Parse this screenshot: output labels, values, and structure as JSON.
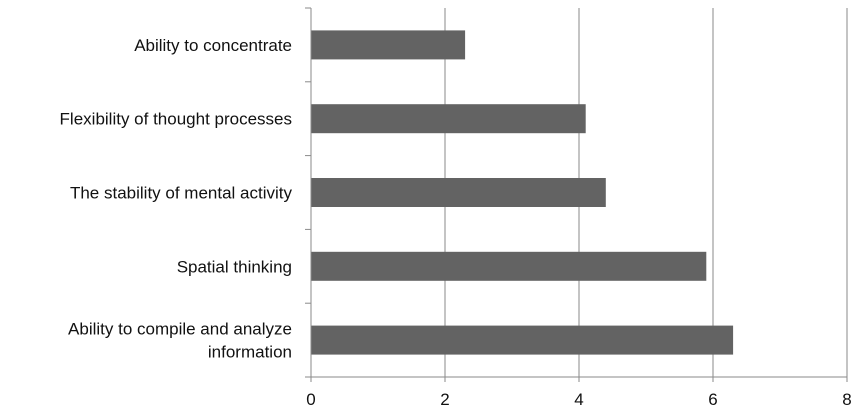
{
  "chart_data": {
    "type": "bar",
    "orientation": "horizontal",
    "categories": [
      "Ability to concentrate",
      "Flexibility of thought processes",
      "The stability of mental activity",
      "Spatial thinking",
      "Ability to compile and analyze information"
    ],
    "category_label_lines": [
      [
        "Ability to concentrate"
      ],
      [
        "Flexibility of thought processes"
      ],
      [
        "The stability of mental activity"
      ],
      [
        "Spatial thinking"
      ],
      [
        "Ability to compile and analyze",
        "information"
      ]
    ],
    "values": [
      2.3,
      4.1,
      4.4,
      5.9,
      6.3
    ],
    "xlim": [
      0,
      8
    ],
    "xticks": [
      "0",
      "2",
      "4",
      "6",
      "8"
    ],
    "title": "",
    "xlabel": "",
    "ylabel": "",
    "grid": "vertical",
    "legend": "none",
    "bar_color": "#636363",
    "grid_color": "#8a8a8a",
    "axis_color": "#8a8a8a"
  }
}
